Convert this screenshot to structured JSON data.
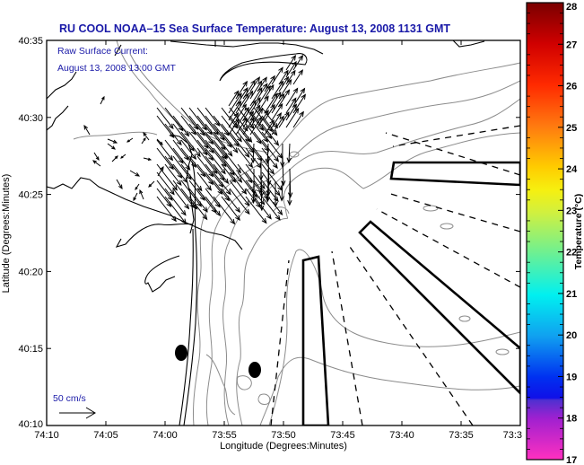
{
  "title": "RU COOL  NOAA–15  Sea Surface Temperature:  August 13, 2008 1131 GMT",
  "annotation": {
    "line1": "Raw Surface Current:",
    "line2": "August 13, 2008 13:00 GMT"
  },
  "scale_legend": {
    "label": "50 cm/s",
    "speed_cm_s": 50
  },
  "x_axis": {
    "label": "Longitude (Degrees:Minutes)",
    "ticks": [
      "74:10",
      "74:05",
      "74:00",
      "73:55",
      "73:50",
      "73:45",
      "73:40",
      "73:35",
      "73:3"
    ]
  },
  "y_axis": {
    "label": "Latitude (Degrees:Minutes)",
    "ticks": [
      "40:35",
      "40:30",
      "40:25",
      "40:20",
      "40:15",
      "40:10"
    ]
  },
  "colorbar": {
    "label": "Temperature (°C)",
    "min": 17,
    "max": 28,
    "ticks": [
      "28",
      "27",
      "26",
      "25",
      "24",
      "23",
      "22",
      "21",
      "20",
      "19",
      "18",
      "17"
    ],
    "colors": {
      "28": "#7a0000",
      "27": "#d00000",
      "26": "#ff2a00",
      "25": "#ff7a10",
      "24": "#ffcc00",
      "23": "#e8f030",
      "22": "#70f090",
      "21": "#00f0f0",
      "20": "#10a0f0",
      "19": "#0030f0",
      "18.2": "#2000e0",
      "18": "#8020d0",
      "17": "#ff30c0"
    }
  },
  "colors": {
    "title_text": "#1a1aa8",
    "coastline": "#000000",
    "bathymetry": "#8c8c8c",
    "vectors": "#000000"
  },
  "markers": [
    {
      "type": "ellipse",
      "lon_label": "73:59",
      "lat_label": "40:14.7"
    },
    {
      "type": "ellipse",
      "lon_label": "73:52",
      "lat_label": "40:13.4"
    }
  ]
}
